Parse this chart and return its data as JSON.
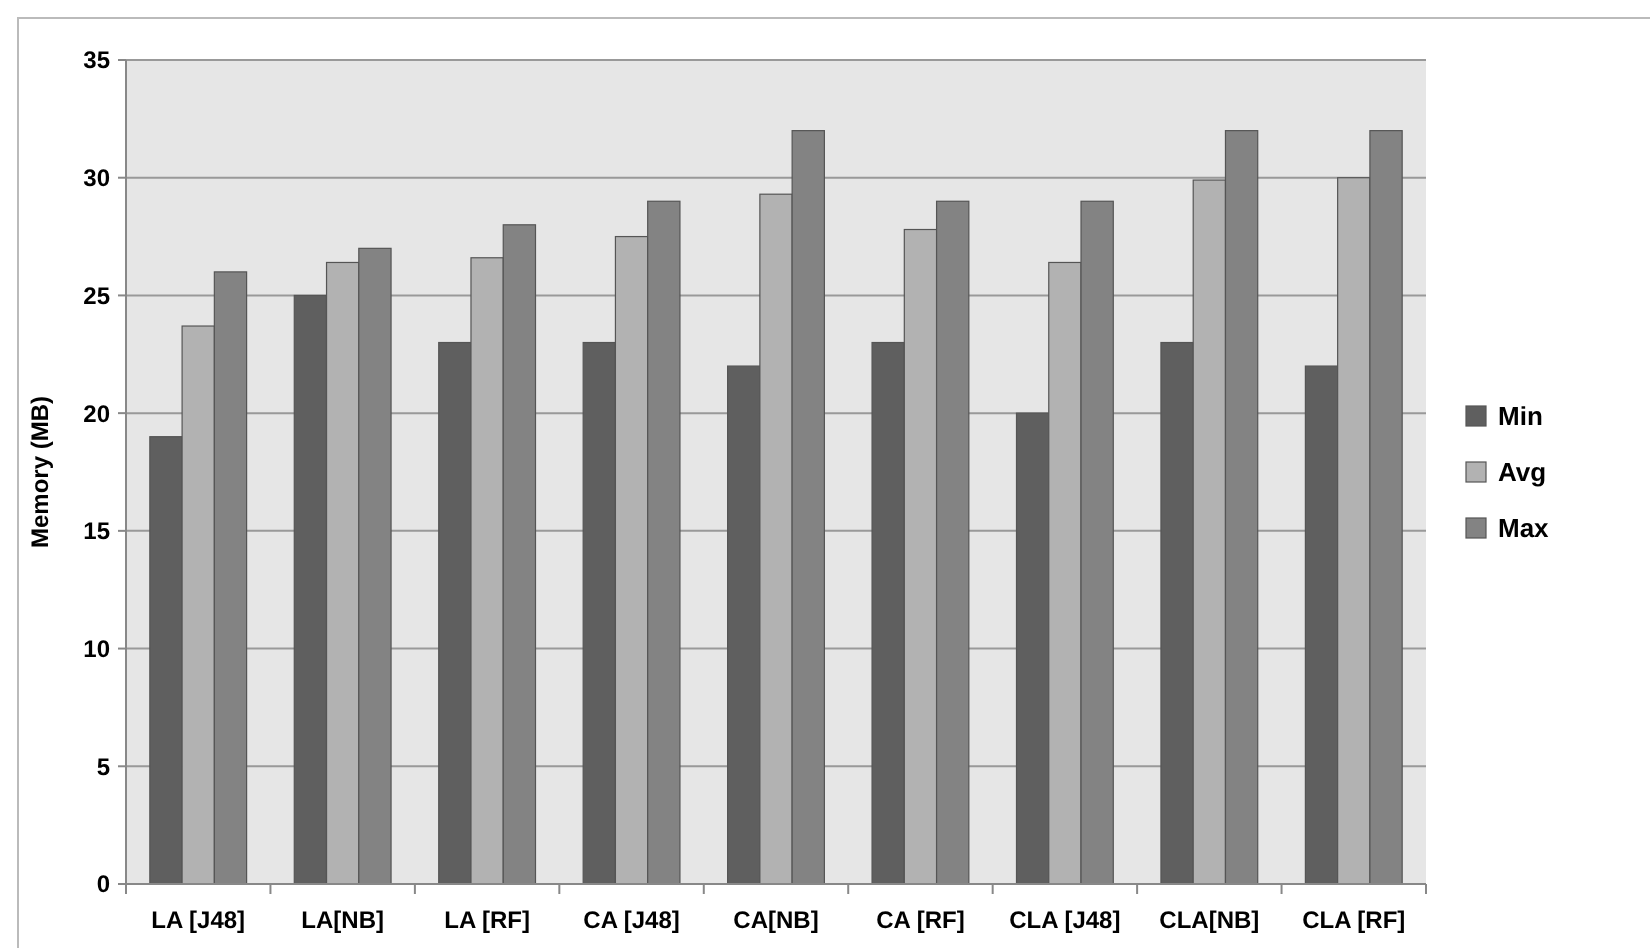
{
  "chart_data": {
    "type": "bar",
    "ylabel": "Memory (MB)",
    "categories": [
      "LA [J48]",
      "LA[NB]",
      "LA [RF]",
      "CA [J48]",
      "CA[NB]",
      "CA [RF]",
      "CLA [J48]",
      "CLA[NB]",
      "CLA [RF]"
    ],
    "series": [
      {
        "name": "Min",
        "color": "#5f5f5f",
        "values": [
          19,
          25,
          23,
          23,
          22,
          23,
          20,
          23,
          22
        ]
      },
      {
        "name": "Avg",
        "color": "#b2b2b2",
        "values": [
          23.7,
          26.4,
          26.6,
          27.5,
          29.3,
          27.8,
          26.4,
          29.9,
          30.0
        ]
      },
      {
        "name": "Max",
        "color": "#838383",
        "values": [
          26,
          27,
          28,
          29,
          32,
          29,
          29,
          32,
          32
        ]
      }
    ],
    "ylim": [
      0,
      35
    ],
    "yticks": [
      0,
      5,
      10,
      15,
      20,
      25,
      30,
      35
    ],
    "grid": "y",
    "legend": "right"
  }
}
